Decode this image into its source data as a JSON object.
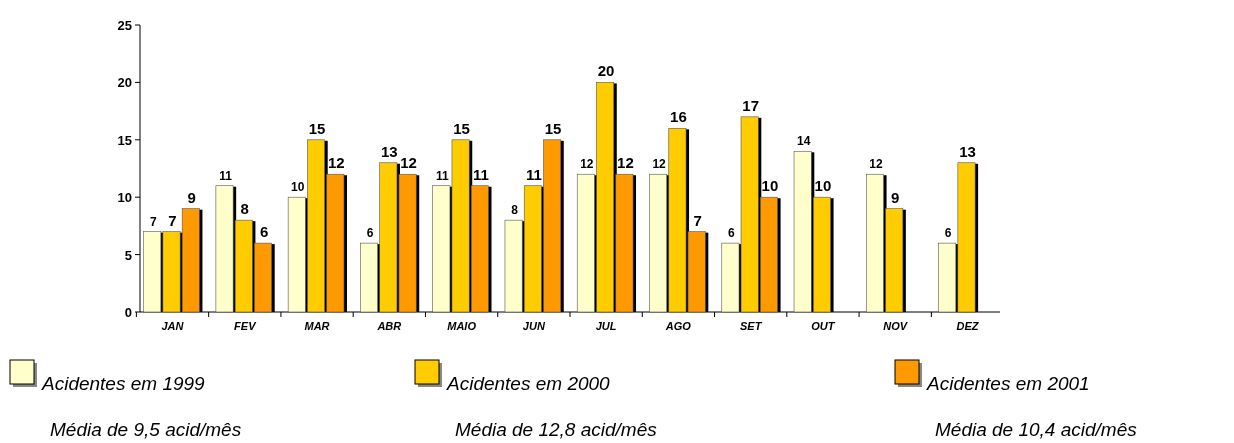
{
  "chart_data": {
    "type": "bar",
    "categories": [
      "JAN",
      "FEV",
      "MAR",
      "ABR",
      "MAIO",
      "JUN",
      "JUL",
      "AGO",
      "SET",
      "OUT",
      "NOV",
      "DEZ"
    ],
    "series": [
      {
        "name": "Acidentes em 1999",
        "color": "#ffffcc",
        "values": [
          7,
          11,
          10,
          6,
          11,
          8,
          12,
          12,
          6,
          14,
          12,
          6
        ]
      },
      {
        "name": "Acidentes em 2000",
        "color": "#ffcc00",
        "values": [
          7,
          8,
          15,
          13,
          15,
          11,
          20,
          16,
          17,
          10,
          9,
          13
        ]
      },
      {
        "name": "Acidentes em 2001",
        "color": "#ff9900",
        "values": [
          9,
          6,
          12,
          12,
          11,
          15,
          12,
          7,
          10,
          null,
          null,
          null
        ]
      }
    ],
    "ylim": [
      0,
      25
    ],
    "yticks": [
      0,
      5,
      10,
      15,
      20,
      25
    ],
    "grid": false,
    "legend": "bottom",
    "data_labels": true,
    "annotations": [
      "Média de 9,5 acid/mês",
      "Média de 12,8 acid/mês",
      "Média de 10,4 acid/mês"
    ]
  }
}
